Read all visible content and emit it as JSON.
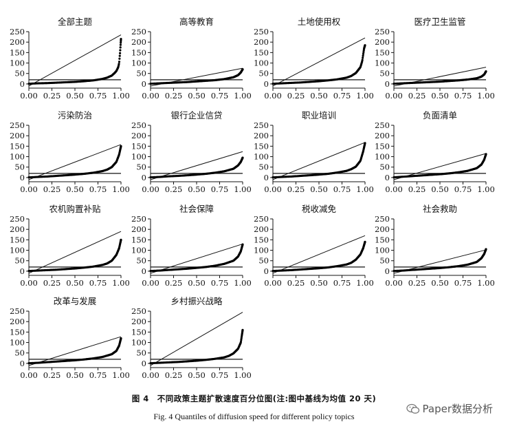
{
  "figure": {
    "caption_cn": "图 4　不同政策主题扩散速度百分位图(注:图中基线为均值 20 天)",
    "caption_en": "Fig. 4 Quantiles of diffusion speed for different policy topics",
    "watermark": "Paper数据分析",
    "watermark_icon": "wechat-icon"
  },
  "chart_data": [
    {
      "type": "scatter",
      "title": "全部主题",
      "xlim": [
        0,
        1
      ],
      "ylim": [
        -20,
        250
      ],
      "xticks": [
        0,
        0.25,
        0.5,
        0.75,
        1
      ],
      "xtick_labels": [
        "0.00",
        "0.25",
        "0.50",
        "0.75",
        "1.00"
      ],
      "yticks": [
        0,
        50,
        100,
        150,
        200,
        250
      ],
      "ytick_labels": [
        "0",
        "50",
        "100",
        "150",
        "200",
        "250"
      ],
      "baseline": 20,
      "quantiles": {
        "x": [
          0,
          0.05,
          0.1,
          0.2,
          0.3,
          0.4,
          0.5,
          0.6,
          0.7,
          0.8,
          0.85,
          0.9,
          0.93,
          0.95,
          0.97,
          0.98,
          0.99,
          1.0
        ],
        "y": [
          1,
          2,
          3,
          4,
          6,
          8,
          10,
          13,
          17,
          24,
          30,
          40,
          52,
          62,
          80,
          100,
          150,
          215
        ]
      },
      "reference_line": {
        "x": [
          0,
          1
        ],
        "y": [
          -10,
          235
        ]
      }
    },
    {
      "type": "scatter",
      "title": "高等教育",
      "xlim": [
        0,
        1
      ],
      "ylim": [
        -20,
        250
      ],
      "xticks": [
        0,
        0.25,
        0.5,
        0.75,
        1
      ],
      "xtick_labels": [
        "0.00",
        "0.25",
        "0.50",
        "0.75",
        "1.00"
      ],
      "yticks": [
        0,
        50,
        100,
        150,
        200,
        250
      ],
      "ytick_labels": [
        "0",
        "50",
        "100",
        "150",
        "200",
        "250"
      ],
      "baseline": 20,
      "quantiles": {
        "x": [
          0,
          0.1,
          0.2,
          0.3,
          0.4,
          0.5,
          0.6,
          0.7,
          0.8,
          0.9,
          0.95,
          0.98,
          1.0
        ],
        "y": [
          1,
          3,
          5,
          7,
          9,
          12,
          15,
          18,
          23,
          32,
          42,
          55,
          70
        ]
      },
      "reference_line": {
        "x": [
          0,
          1
        ],
        "y": [
          -10,
          75
        ]
      }
    },
    {
      "type": "scatter",
      "title": "土地使用权",
      "xlim": [
        0,
        1
      ],
      "ylim": [
        -20,
        250
      ],
      "xticks": [
        0,
        0.25,
        0.5,
        0.75,
        1
      ],
      "xtick_labels": [
        "0.00",
        "0.25",
        "0.50",
        "0.75",
        "1.00"
      ],
      "yticks": [
        0,
        50,
        100,
        150,
        200,
        250
      ],
      "ytick_labels": [
        "0",
        "50",
        "100",
        "150",
        "200",
        "250"
      ],
      "baseline": 20,
      "quantiles": {
        "x": [
          0,
          0.1,
          0.2,
          0.3,
          0.4,
          0.5,
          0.6,
          0.7,
          0.8,
          0.85,
          0.9,
          0.95,
          0.97,
          0.98,
          0.99,
          1.0
        ],
        "y": [
          1,
          3,
          5,
          7,
          10,
          13,
          17,
          22,
          30,
          38,
          52,
          80,
          110,
          140,
          170,
          185
        ]
      },
      "reference_line": {
        "x": [
          0,
          1
        ],
        "y": [
          -10,
          220
        ]
      }
    },
    {
      "type": "scatter",
      "title": "医疗卫生监管",
      "xlim": [
        0,
        1
      ],
      "ylim": [
        -20,
        250
      ],
      "xticks": [
        0,
        0.25,
        0.5,
        0.75,
        1
      ],
      "xtick_labels": [
        "0.00",
        "0.25",
        "0.50",
        "0.75",
        "1.00"
      ],
      "yticks": [
        0,
        50,
        100,
        150,
        200,
        250
      ],
      "ytick_labels": [
        "0",
        "50",
        "100",
        "150",
        "200",
        "250"
      ],
      "baseline": 20,
      "quantiles": {
        "x": [
          0,
          0.1,
          0.2,
          0.3,
          0.4,
          0.5,
          0.6,
          0.7,
          0.8,
          0.9,
          0.95,
          0.98,
          1.0
        ],
        "y": [
          1,
          3,
          5,
          7,
          9,
          11,
          14,
          17,
          21,
          27,
          35,
          45,
          60
        ]
      },
      "reference_line": {
        "x": [
          0,
          1
        ],
        "y": [
          -10,
          80
        ]
      }
    },
    {
      "type": "scatter",
      "title": "污染防治",
      "xlim": [
        0,
        1
      ],
      "ylim": [
        -20,
        250
      ],
      "xticks": [
        0,
        0.25,
        0.5,
        0.75,
        1
      ],
      "xtick_labels": [
        "0.00",
        "0.25",
        "0.50",
        "0.75",
        "1.00"
      ],
      "yticks": [
        0,
        50,
        100,
        150,
        200,
        250
      ],
      "ytick_labels": [
        "0",
        "50",
        "100",
        "150",
        "200",
        "250"
      ],
      "baseline": 20,
      "quantiles": {
        "x": [
          0,
          0.1,
          0.2,
          0.3,
          0.4,
          0.5,
          0.6,
          0.7,
          0.8,
          0.85,
          0.9,
          0.95,
          0.98,
          1.0
        ],
        "y": [
          1,
          3,
          5,
          8,
          11,
          14,
          18,
          23,
          31,
          38,
          50,
          75,
          110,
          150
        ]
      },
      "reference_line": {
        "x": [
          0,
          1
        ],
        "y": [
          -10,
          158
        ]
      }
    },
    {
      "type": "scatter",
      "title": "银行企业信贷",
      "xlim": [
        0,
        1
      ],
      "ylim": [
        -20,
        250
      ],
      "xticks": [
        0,
        0.25,
        0.5,
        0.75,
        1
      ],
      "xtick_labels": [
        "0.00",
        "0.25",
        "0.50",
        "0.75",
        "1.00"
      ],
      "yticks": [
        0,
        50,
        100,
        150,
        200,
        250
      ],
      "ytick_labels": [
        "0",
        "50",
        "100",
        "150",
        "200",
        "250"
      ],
      "baseline": 20,
      "quantiles": {
        "x": [
          0,
          0.1,
          0.2,
          0.3,
          0.4,
          0.5,
          0.6,
          0.7,
          0.8,
          0.9,
          0.95,
          0.98,
          1.0
        ],
        "y": [
          1,
          3,
          6,
          8,
          11,
          14,
          18,
          23,
          30,
          42,
          58,
          75,
          95
        ]
      },
      "reference_line": {
        "x": [
          0,
          1
        ],
        "y": [
          -10,
          124
        ]
      }
    },
    {
      "type": "scatter",
      "title": "职业培训",
      "xlim": [
        0,
        1
      ],
      "ylim": [
        -20,
        250
      ],
      "xticks": [
        0,
        0.25,
        0.5,
        0.75,
        1
      ],
      "xtick_labels": [
        "0.00",
        "0.25",
        "0.50",
        "0.75",
        "1.00"
      ],
      "yticks": [
        0,
        50,
        100,
        150,
        200,
        250
      ],
      "ytick_labels": [
        "0",
        "50",
        "100",
        "150",
        "200",
        "250"
      ],
      "baseline": 20,
      "quantiles": {
        "x": [
          0,
          0.1,
          0.2,
          0.3,
          0.4,
          0.5,
          0.6,
          0.7,
          0.8,
          0.85,
          0.9,
          0.95,
          0.98,
          1.0
        ],
        "y": [
          1,
          3,
          5,
          8,
          11,
          14,
          18,
          24,
          32,
          40,
          52,
          80,
          125,
          165
        ]
      },
      "reference_line": {
        "x": [
          0,
          1
        ],
        "y": [
          -10,
          168
        ]
      }
    },
    {
      "type": "scatter",
      "title": "负面清单",
      "xlim": [
        0,
        1
      ],
      "ylim": [
        -20,
        250
      ],
      "xticks": [
        0,
        0.25,
        0.5,
        0.75,
        1
      ],
      "xtick_labels": [
        "0.00",
        "0.25",
        "0.50",
        "0.75",
        "1.00"
      ],
      "yticks": [
        0,
        50,
        100,
        150,
        200,
        250
      ],
      "ytick_labels": [
        "0",
        "50",
        "100",
        "150",
        "200",
        "250"
      ],
      "baseline": 20,
      "quantiles": {
        "x": [
          0,
          0.1,
          0.2,
          0.3,
          0.4,
          0.5,
          0.6,
          0.7,
          0.8,
          0.9,
          0.95,
          0.98,
          1.0
        ],
        "y": [
          1,
          4,
          7,
          10,
          13,
          16,
          20,
          25,
          32,
          45,
          62,
          85,
          112
        ]
      },
      "reference_line": {
        "x": [
          0,
          1
        ],
        "y": [
          -10,
          115
        ]
      }
    },
    {
      "type": "scatter",
      "title": "农机购置补贴",
      "xlim": [
        0,
        1
      ],
      "ylim": [
        -20,
        250
      ],
      "xticks": [
        0,
        0.25,
        0.5,
        0.75,
        1
      ],
      "xtick_labels": [
        "0.00",
        "0.25",
        "0.50",
        "0.75",
        "1.00"
      ],
      "yticks": [
        0,
        50,
        100,
        150,
        200,
        250
      ],
      "ytick_labels": [
        "0",
        "50",
        "100",
        "150",
        "200",
        "250"
      ],
      "baseline": 20,
      "quantiles": {
        "x": [
          0,
          0.1,
          0.2,
          0.3,
          0.4,
          0.5,
          0.6,
          0.7,
          0.8,
          0.85,
          0.9,
          0.95,
          0.98,
          1.0
        ],
        "y": [
          1,
          3,
          5,
          7,
          10,
          13,
          17,
          22,
          30,
          37,
          50,
          78,
          110,
          150
        ]
      },
      "reference_line": {
        "x": [
          0,
          1
        ],
        "y": [
          -10,
          190
        ]
      }
    },
    {
      "type": "scatter",
      "title": "社会保障",
      "xlim": [
        0,
        1
      ],
      "ylim": [
        -20,
        250
      ],
      "xticks": [
        0,
        0.25,
        0.5,
        0.75,
        1
      ],
      "xtick_labels": [
        "0.00",
        "0.25",
        "0.50",
        "0.75",
        "1.00"
      ],
      "yticks": [
        0,
        50,
        100,
        150,
        200,
        250
      ],
      "ytick_labels": [
        "0",
        "50",
        "100",
        "150",
        "200",
        "250"
      ],
      "baseline": 20,
      "quantiles": {
        "x": [
          0,
          0.1,
          0.2,
          0.3,
          0.4,
          0.5,
          0.6,
          0.7,
          0.8,
          0.9,
          0.95,
          0.98,
          1.0
        ],
        "y": [
          1,
          3,
          6,
          9,
          12,
          16,
          20,
          26,
          35,
          50,
          70,
          95,
          128
        ]
      },
      "reference_line": {
        "x": [
          0,
          1
        ],
        "y": [
          -10,
          130
        ]
      }
    },
    {
      "type": "scatter",
      "title": "税收减免",
      "xlim": [
        0,
        1
      ],
      "ylim": [
        -20,
        250
      ],
      "xticks": [
        0,
        0.25,
        0.5,
        0.75,
        1
      ],
      "xtick_labels": [
        "0.00",
        "0.25",
        "0.50",
        "0.75",
        "1.00"
      ],
      "yticks": [
        0,
        50,
        100,
        150,
        200,
        250
      ],
      "ytick_labels": [
        "0",
        "50",
        "100",
        "150",
        "200",
        "250"
      ],
      "baseline": 20,
      "quantiles": {
        "x": [
          0,
          0.1,
          0.2,
          0.3,
          0.4,
          0.5,
          0.6,
          0.7,
          0.8,
          0.85,
          0.9,
          0.95,
          0.98,
          1.0
        ],
        "y": [
          1,
          3,
          5,
          8,
          11,
          14,
          18,
          24,
          32,
          40,
          55,
          80,
          110,
          140
        ]
      },
      "reference_line": {
        "x": [
          0,
          1
        ],
        "y": [
          -10,
          170
        ]
      }
    },
    {
      "type": "scatter",
      "title": "社会救助",
      "xlim": [
        0,
        1
      ],
      "ylim": [
        -20,
        250
      ],
      "xticks": [
        0,
        0.25,
        0.5,
        0.75,
        1
      ],
      "xtick_labels": [
        "0.00",
        "0.25",
        "0.50",
        "0.75",
        "1.00"
      ],
      "yticks": [
        0,
        50,
        100,
        150,
        200,
        250
      ],
      "ytick_labels": [
        "0",
        "50",
        "100",
        "150",
        "200",
        "250"
      ],
      "baseline": 20,
      "quantiles": {
        "x": [
          0,
          0.1,
          0.2,
          0.3,
          0.4,
          0.5,
          0.6,
          0.7,
          0.8,
          0.9,
          0.95,
          0.98,
          1.0
        ],
        "y": [
          1,
          3,
          6,
          9,
          12,
          15,
          19,
          24,
          31,
          44,
          62,
          82,
          105
        ]
      },
      "reference_line": {
        "x": [
          0,
          1
        ],
        "y": [
          -10,
          102
        ]
      }
    },
    {
      "type": "scatter",
      "title": "改革与发展",
      "xlim": [
        0,
        1
      ],
      "ylim": [
        -20,
        250
      ],
      "xticks": [
        0,
        0.25,
        0.5,
        0.75,
        1
      ],
      "xtick_labels": [
        "0.00",
        "0.25",
        "0.50",
        "0.75",
        "1.00"
      ],
      "yticks": [
        0,
        50,
        100,
        150,
        200,
        250
      ],
      "ytick_labels": [
        "0",
        "50",
        "100",
        "150",
        "200",
        "250"
      ],
      "baseline": 20,
      "quantiles": {
        "x": [
          0,
          0.1,
          0.2,
          0.3,
          0.4,
          0.5,
          0.6,
          0.7,
          0.8,
          0.9,
          0.95,
          0.98,
          1.0
        ],
        "y": [
          1,
          3,
          6,
          9,
          12,
          15,
          19,
          24,
          31,
          44,
          60,
          85,
          120
        ]
      },
      "reference_line": {
        "x": [
          0,
          1
        ],
        "y": [
          -10,
          128
        ]
      }
    },
    {
      "type": "scatter",
      "title": "乡村振兴战略",
      "xlim": [
        0,
        1
      ],
      "ylim": [
        -20,
        250
      ],
      "xticks": [
        0,
        0.25,
        0.5,
        0.75,
        1
      ],
      "xtick_labels": [
        "0.00",
        "0.25",
        "0.50",
        "0.75",
        "1.00"
      ],
      "yticks": [
        0,
        50,
        100,
        150,
        200,
        250
      ],
      "ytick_labels": [
        "0",
        "50",
        "100",
        "150",
        "200",
        "250"
      ],
      "baseline": 20,
      "quantiles": {
        "x": [
          0,
          0.1,
          0.2,
          0.3,
          0.4,
          0.5,
          0.6,
          0.7,
          0.8,
          0.85,
          0.9,
          0.95,
          0.98,
          1.0
        ],
        "y": [
          1,
          3,
          5,
          7,
          10,
          13,
          17,
          22,
          29,
          36,
          48,
          70,
          100,
          160
        ]
      },
      "reference_line": {
        "x": [
          0,
          1
        ],
        "y": [
          -10,
          245
        ]
      }
    }
  ]
}
